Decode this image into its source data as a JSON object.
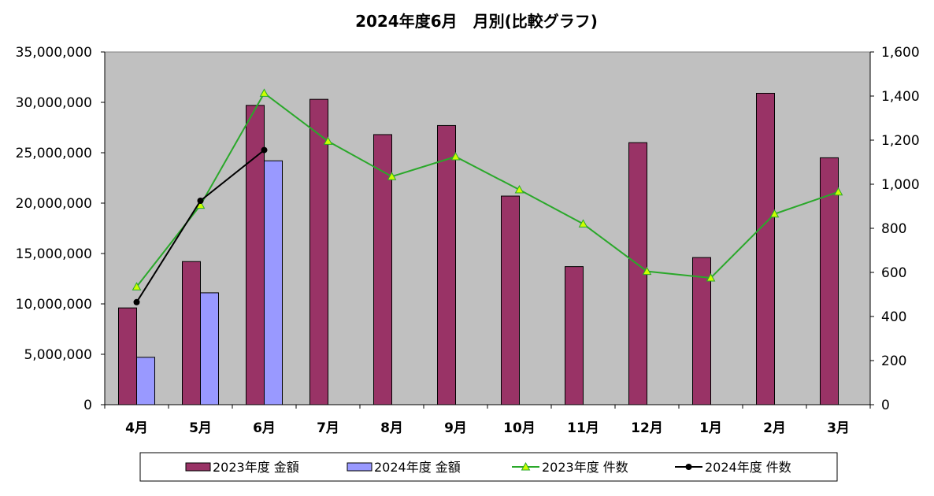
{
  "chart_data": {
    "type": "bar",
    "title": "2024年度6月　月別(比較グラフ)",
    "categories": [
      "4月",
      "5月",
      "6月",
      "7月",
      "8月",
      "9月",
      "10月",
      "11月",
      "12月",
      "1月",
      "2月",
      "3月"
    ],
    "y_left": {
      "ylim": [
        0,
        35000000
      ],
      "ticks": [
        "0",
        "5,000,000",
        "10,000,000",
        "15,000,000",
        "20,000,000",
        "25,000,000",
        "30,000,000",
        "35,000,000"
      ]
    },
    "y_right": {
      "ylim": [
        0,
        1600
      ],
      "ticks": [
        "0",
        "200",
        "400",
        "600",
        "800",
        "1,000",
        "1,200",
        "1,400",
        "1,600"
      ]
    },
    "series": [
      {
        "name": "2023年度 金額",
        "type": "bar",
        "axis": "left",
        "color": "#993366",
        "values": [
          9600000,
          14200000,
          29700000,
          30300000,
          26800000,
          27700000,
          20700000,
          13700000,
          26000000,
          14600000,
          30900000,
          24500000
        ]
      },
      {
        "name": "2024年度 金額",
        "type": "bar",
        "axis": "left",
        "color": "#9999ff",
        "values": [
          4700000,
          11100000,
          24200000,
          null,
          null,
          null,
          null,
          null,
          null,
          null,
          null,
          null
        ]
      },
      {
        "name": "2023年度 件数",
        "type": "line",
        "axis": "right",
        "color": "#2aa82a",
        "marker": "triangle",
        "marker_color": "#ccff00",
        "values": [
          535,
          905,
          1413,
          1195,
          1035,
          1125,
          975,
          820,
          605,
          575,
          865,
          965
        ]
      },
      {
        "name": "2024年度 件数",
        "type": "line",
        "axis": "right",
        "color": "#000000",
        "marker": "circle",
        "values": [
          465,
          925,
          1155,
          null,
          null,
          null,
          null,
          null,
          null,
          null,
          null,
          null
        ]
      }
    ],
    "plot_background": "#c0c0c0",
    "grid": false,
    "legend": "bottom"
  }
}
